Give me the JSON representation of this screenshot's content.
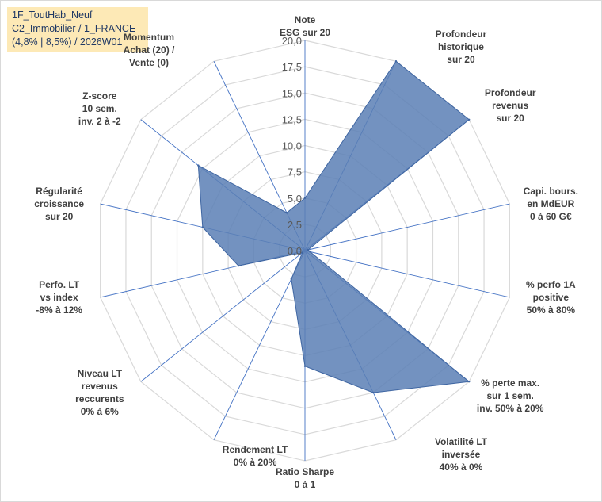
{
  "info_box": {
    "line1": "1F_ToutHab_Neuf",
    "line2": "C2_Immobilier / 1_FRANCE",
    "line3": "(4,8% | 8,5%) / 2026W01"
  },
  "colors": {
    "fill": "#5a7fb5",
    "fill_opacity": "0.85",
    "stroke": "#3f66a2",
    "grid": "#d9d9d9",
    "spoke": "#4472c4",
    "info_bg": "#fde9b6",
    "info_text": "#1f3864",
    "label_text": "#404040"
  },
  "chart_data": {
    "type": "radar",
    "rmin": 0,
    "rmax": 20,
    "tick_step": 2.5,
    "tick_labels": [
      "0,0",
      "2,5",
      "5,0",
      "7,5",
      "10,0",
      "12,5",
      "15,0",
      "17,5",
      "20,0"
    ],
    "axes": [
      {
        "label": [
          "Note",
          "ESG sur 20"
        ],
        "value": 5.0
      },
      {
        "label": [
          "Profondeur",
          "historique",
          "sur 20"
        ],
        "value": 20.0
      },
      {
        "label": [
          "Profondeur",
          "revenus",
          "sur 20"
        ],
        "value": 20.0
      },
      {
        "label": [
          "Capi. bours.",
          "en MdEUR",
          "0 à 60 G€"
        ],
        "value": 0.3
      },
      {
        "label": [
          "% perfo 1A",
          "positive",
          "50% à 80%"
        ],
        "value": 0.5
      },
      {
        "label": [
          "% perte max.",
          "sur 1 sem.",
          "inv. 50% à 20%"
        ],
        "value": 20.0
      },
      {
        "label": [
          "Volatilité LT",
          "inversée",
          "40% à 0%"
        ],
        "value": 15.0
      },
      {
        "label": [
          "Ratio Sharpe",
          "0 à 1"
        ],
        "value": 11.0
      },
      {
        "label": [
          "Rendement LT",
          "0% à 20%"
        ],
        "value": 3.0
      },
      {
        "label": [
          "Niveau LT",
          "revenus",
          "reccurents",
          "0% à 6%"
        ],
        "value": 0.3
      },
      {
        "label": [
          "Perfo. LT",
          "vs index",
          "-8% à 12%"
        ],
        "value": 6.5
      },
      {
        "label": [
          "Régularité",
          "croissance",
          "sur 20"
        ],
        "value": 10.0
      },
      {
        "label": [
          "Z-score",
          "10 sem.",
          "inv. 2 à -2"
        ],
        "value": 13.0
      },
      {
        "label": [
          "Momentum",
          "Achat (20) /",
          "Vente (0)"
        ],
        "value": 4.0
      }
    ]
  }
}
